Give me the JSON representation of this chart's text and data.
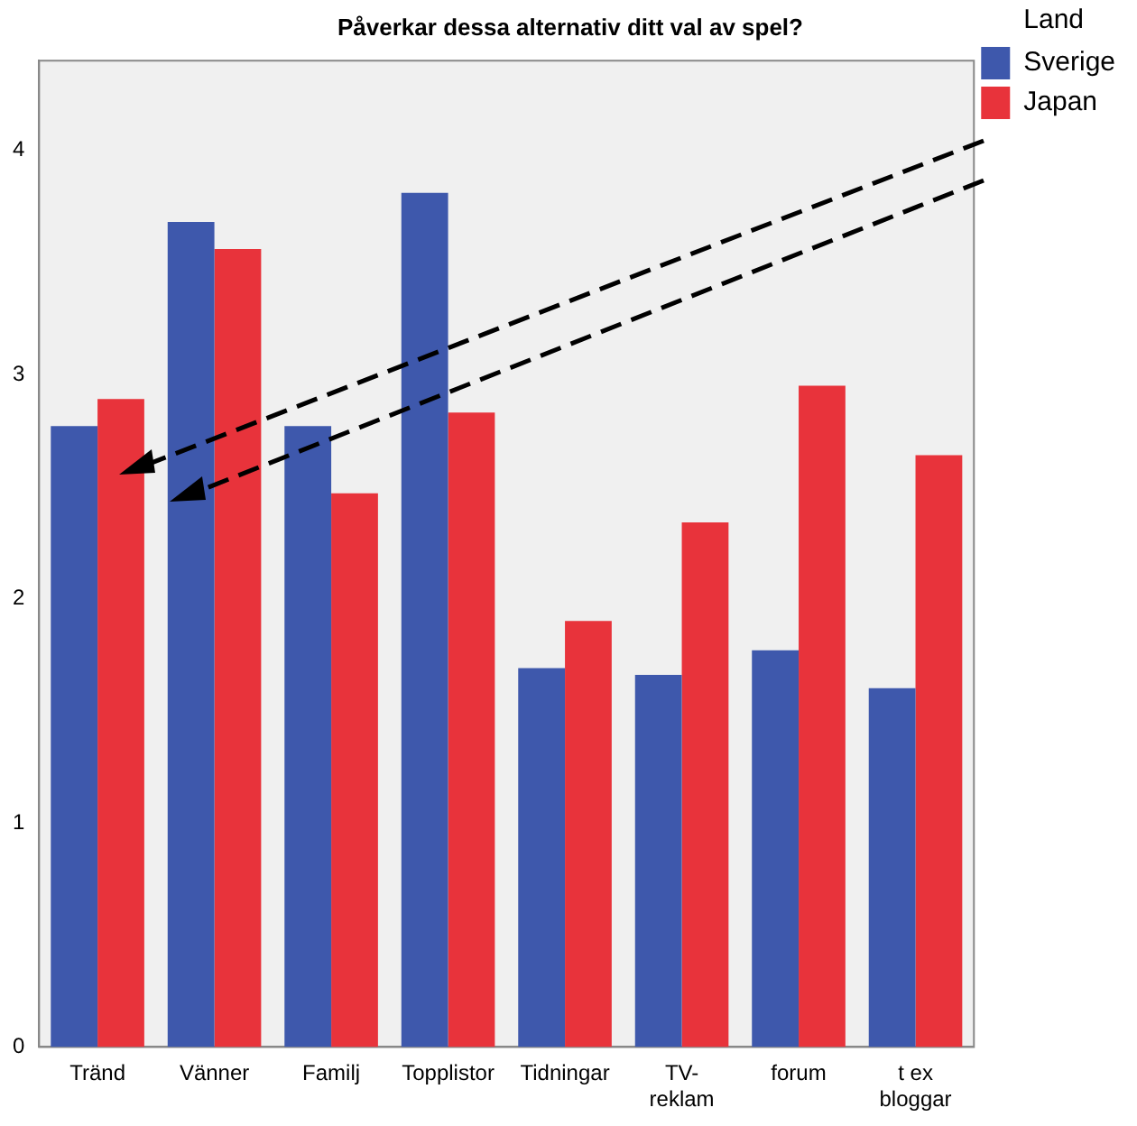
{
  "chart_data": {
    "type": "bar",
    "title": "Påverkar dessa alternativ ditt val av spel?",
    "legend_title": "Land",
    "categories": [
      "Tränd",
      "Vänner",
      "Familj",
      "Topplistor",
      "Tidningar",
      "TV-reklam",
      "forum",
      "t ex bloggar"
    ],
    "series": [
      {
        "name": "Sverige",
        "color": "#3e58ac",
        "values": [
          2.77,
          3.68,
          2.77,
          3.81,
          1.69,
          1.66,
          1.77,
          1.6
        ]
      },
      {
        "name": "Japan",
        "color": "#e8333b",
        "values": [
          2.89,
          3.56,
          2.47,
          2.83,
          1.9,
          2.34,
          2.95,
          2.64
        ]
      }
    ],
    "ylim": [
      0,
      4.4
    ],
    "yticks": [
      0,
      1,
      2,
      3,
      4
    ],
    "grid": false,
    "legend": "top right"
  }
}
